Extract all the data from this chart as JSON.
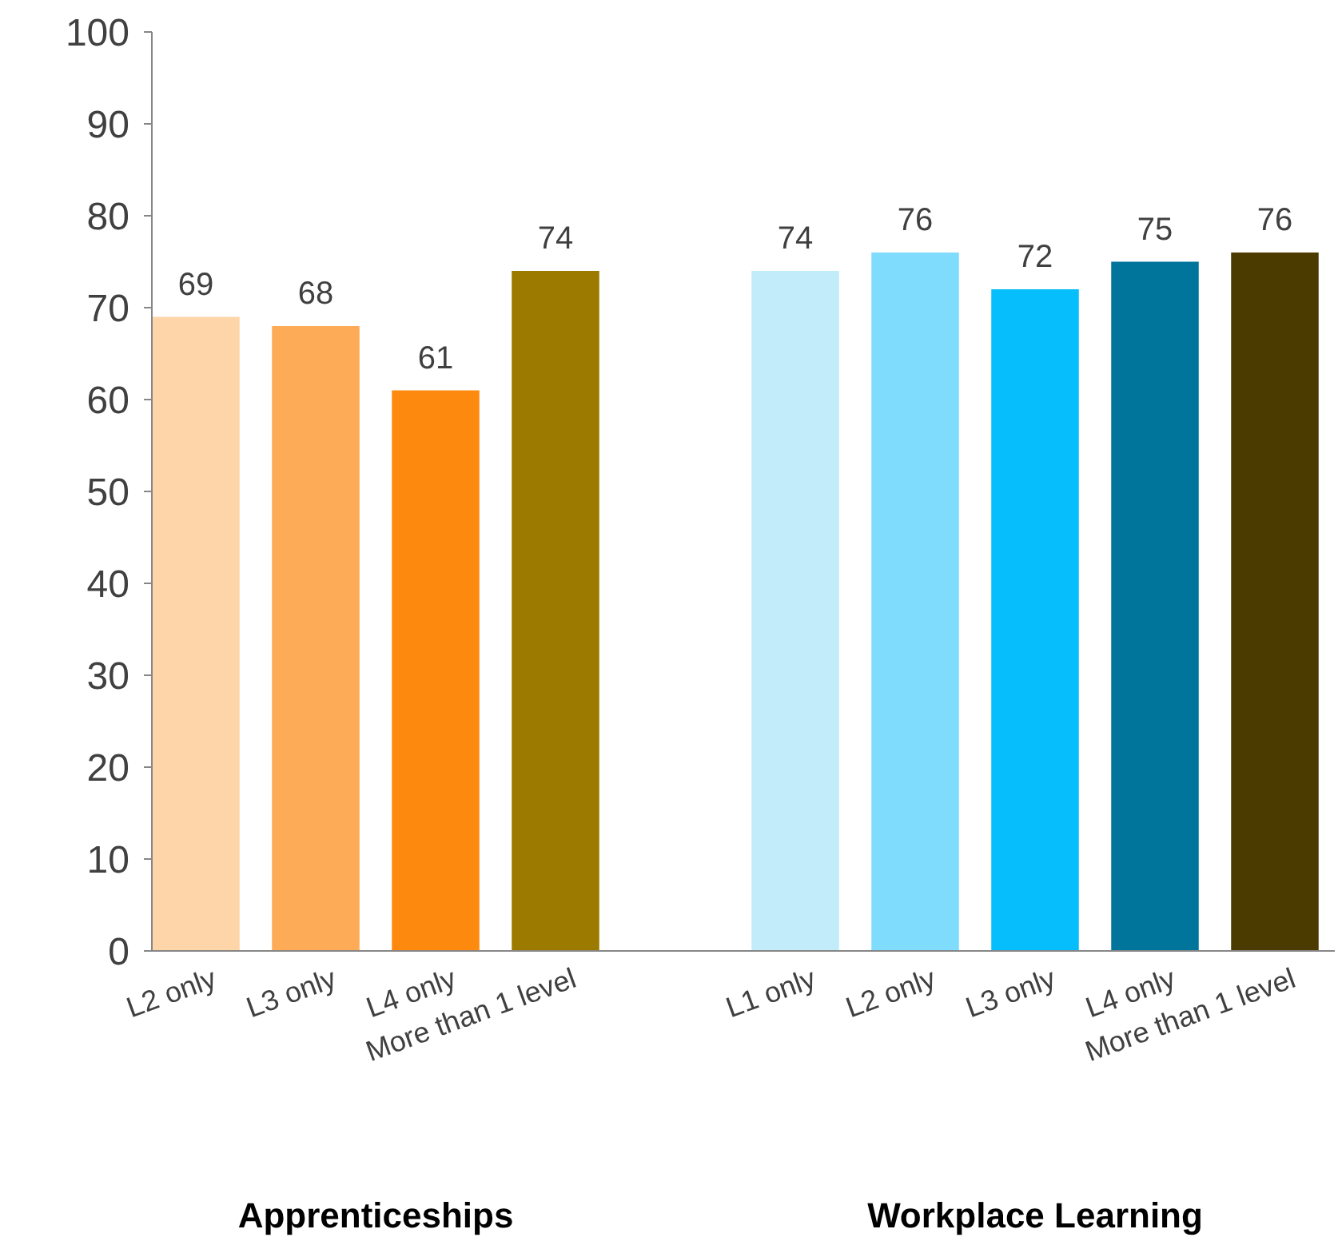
{
  "chart_data": {
    "type": "bar",
    "categories": [
      "L2 only",
      "L3 only",
      "L4 only",
      "More than 1 level",
      null,
      "L1 only",
      "L2 only",
      "L3 only",
      "L4 only",
      "More than 1 level"
    ],
    "values": [
      69,
      68,
      61,
      74,
      null,
      74,
      76,
      72,
      75,
      76
    ],
    "colors": [
      "#fdd5a8",
      "#fdab57",
      "#fd8a0f",
      "#9c7a00",
      null,
      "#c3ecfb",
      "#80dcfc",
      "#06befb",
      "#00759b",
      "#4b3b00"
    ],
    "ylim": [
      0,
      100
    ],
    "yticks": [
      0,
      10,
      20,
      30,
      40,
      50,
      60,
      70,
      80,
      90,
      100
    ],
    "data_labels": true,
    "grid": false,
    "annotations": [
      "Apprenticeships",
      "Workplace Learning"
    ]
  }
}
